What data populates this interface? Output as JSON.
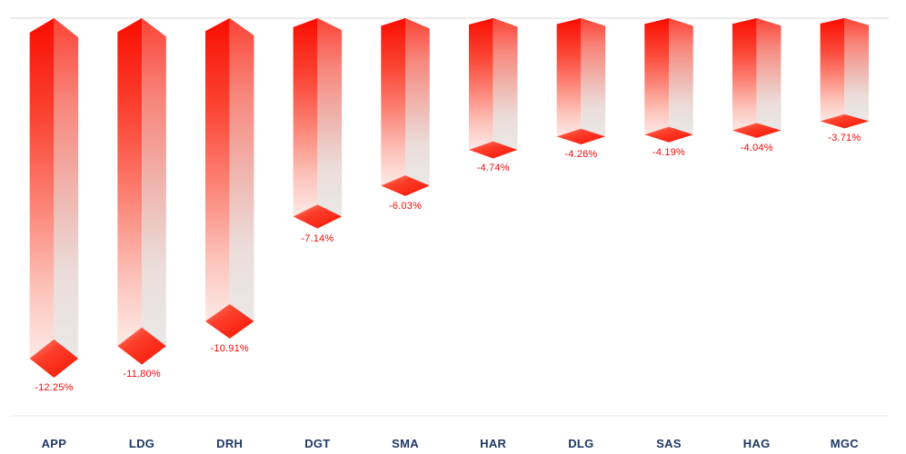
{
  "chart_data": {
    "type": "bar",
    "style": "3d-hanging-columns-negative",
    "title": "",
    "xlabel": "",
    "ylabel": "",
    "categories": [
      "APP",
      "LDG",
      "DRH",
      "DGT",
      "SMA",
      "HAR",
      "DLG",
      "SAS",
      "HAG",
      "MGC"
    ],
    "values": [
      -12.25,
      -11.8,
      -10.91,
      -7.14,
      -6.03,
      -4.74,
      -4.26,
      -4.19,
      -4.04,
      -3.71
    ],
    "labels": [
      "-12.25%",
      "-11.80%",
      "-10.91%",
      "-7.14%",
      "-6.03%",
      "-4.74%",
      "-4.26%",
      "-4.19%",
      "-4.04%",
      "-3.71%"
    ],
    "ylim": [
      -13,
      0
    ],
    "baseline_value": 0,
    "grid": false,
    "legend": false,
    "colors": {
      "value_label": "#f50a0a",
      "category_label": "#1f3864",
      "zero_line": "#d9d9d9",
      "bottom_line": "#e9e9e9",
      "left_face_stops": [
        [
          "0%",
          "#f90d00"
        ],
        [
          "30%",
          "#fb4636"
        ],
        [
          "55%",
          "#fc8376"
        ],
        [
          "80%",
          "#fcc4bb"
        ],
        [
          "100%",
          "#fdeae6"
        ]
      ],
      "right_face_stops": [
        [
          "0%",
          "#fb4437"
        ],
        [
          "25%",
          "#f8867c"
        ],
        [
          "50%",
          "#f0b3ac"
        ],
        [
          "75%",
          "#ebdcd9"
        ],
        [
          "100%",
          "#eae8e7"
        ]
      ],
      "diamond_stops": [
        [
          "0%",
          "#ff8b7b"
        ],
        [
          "40%",
          "#fb3e2a"
        ],
        [
          "100%",
          "#f91606"
        ]
      ]
    }
  }
}
